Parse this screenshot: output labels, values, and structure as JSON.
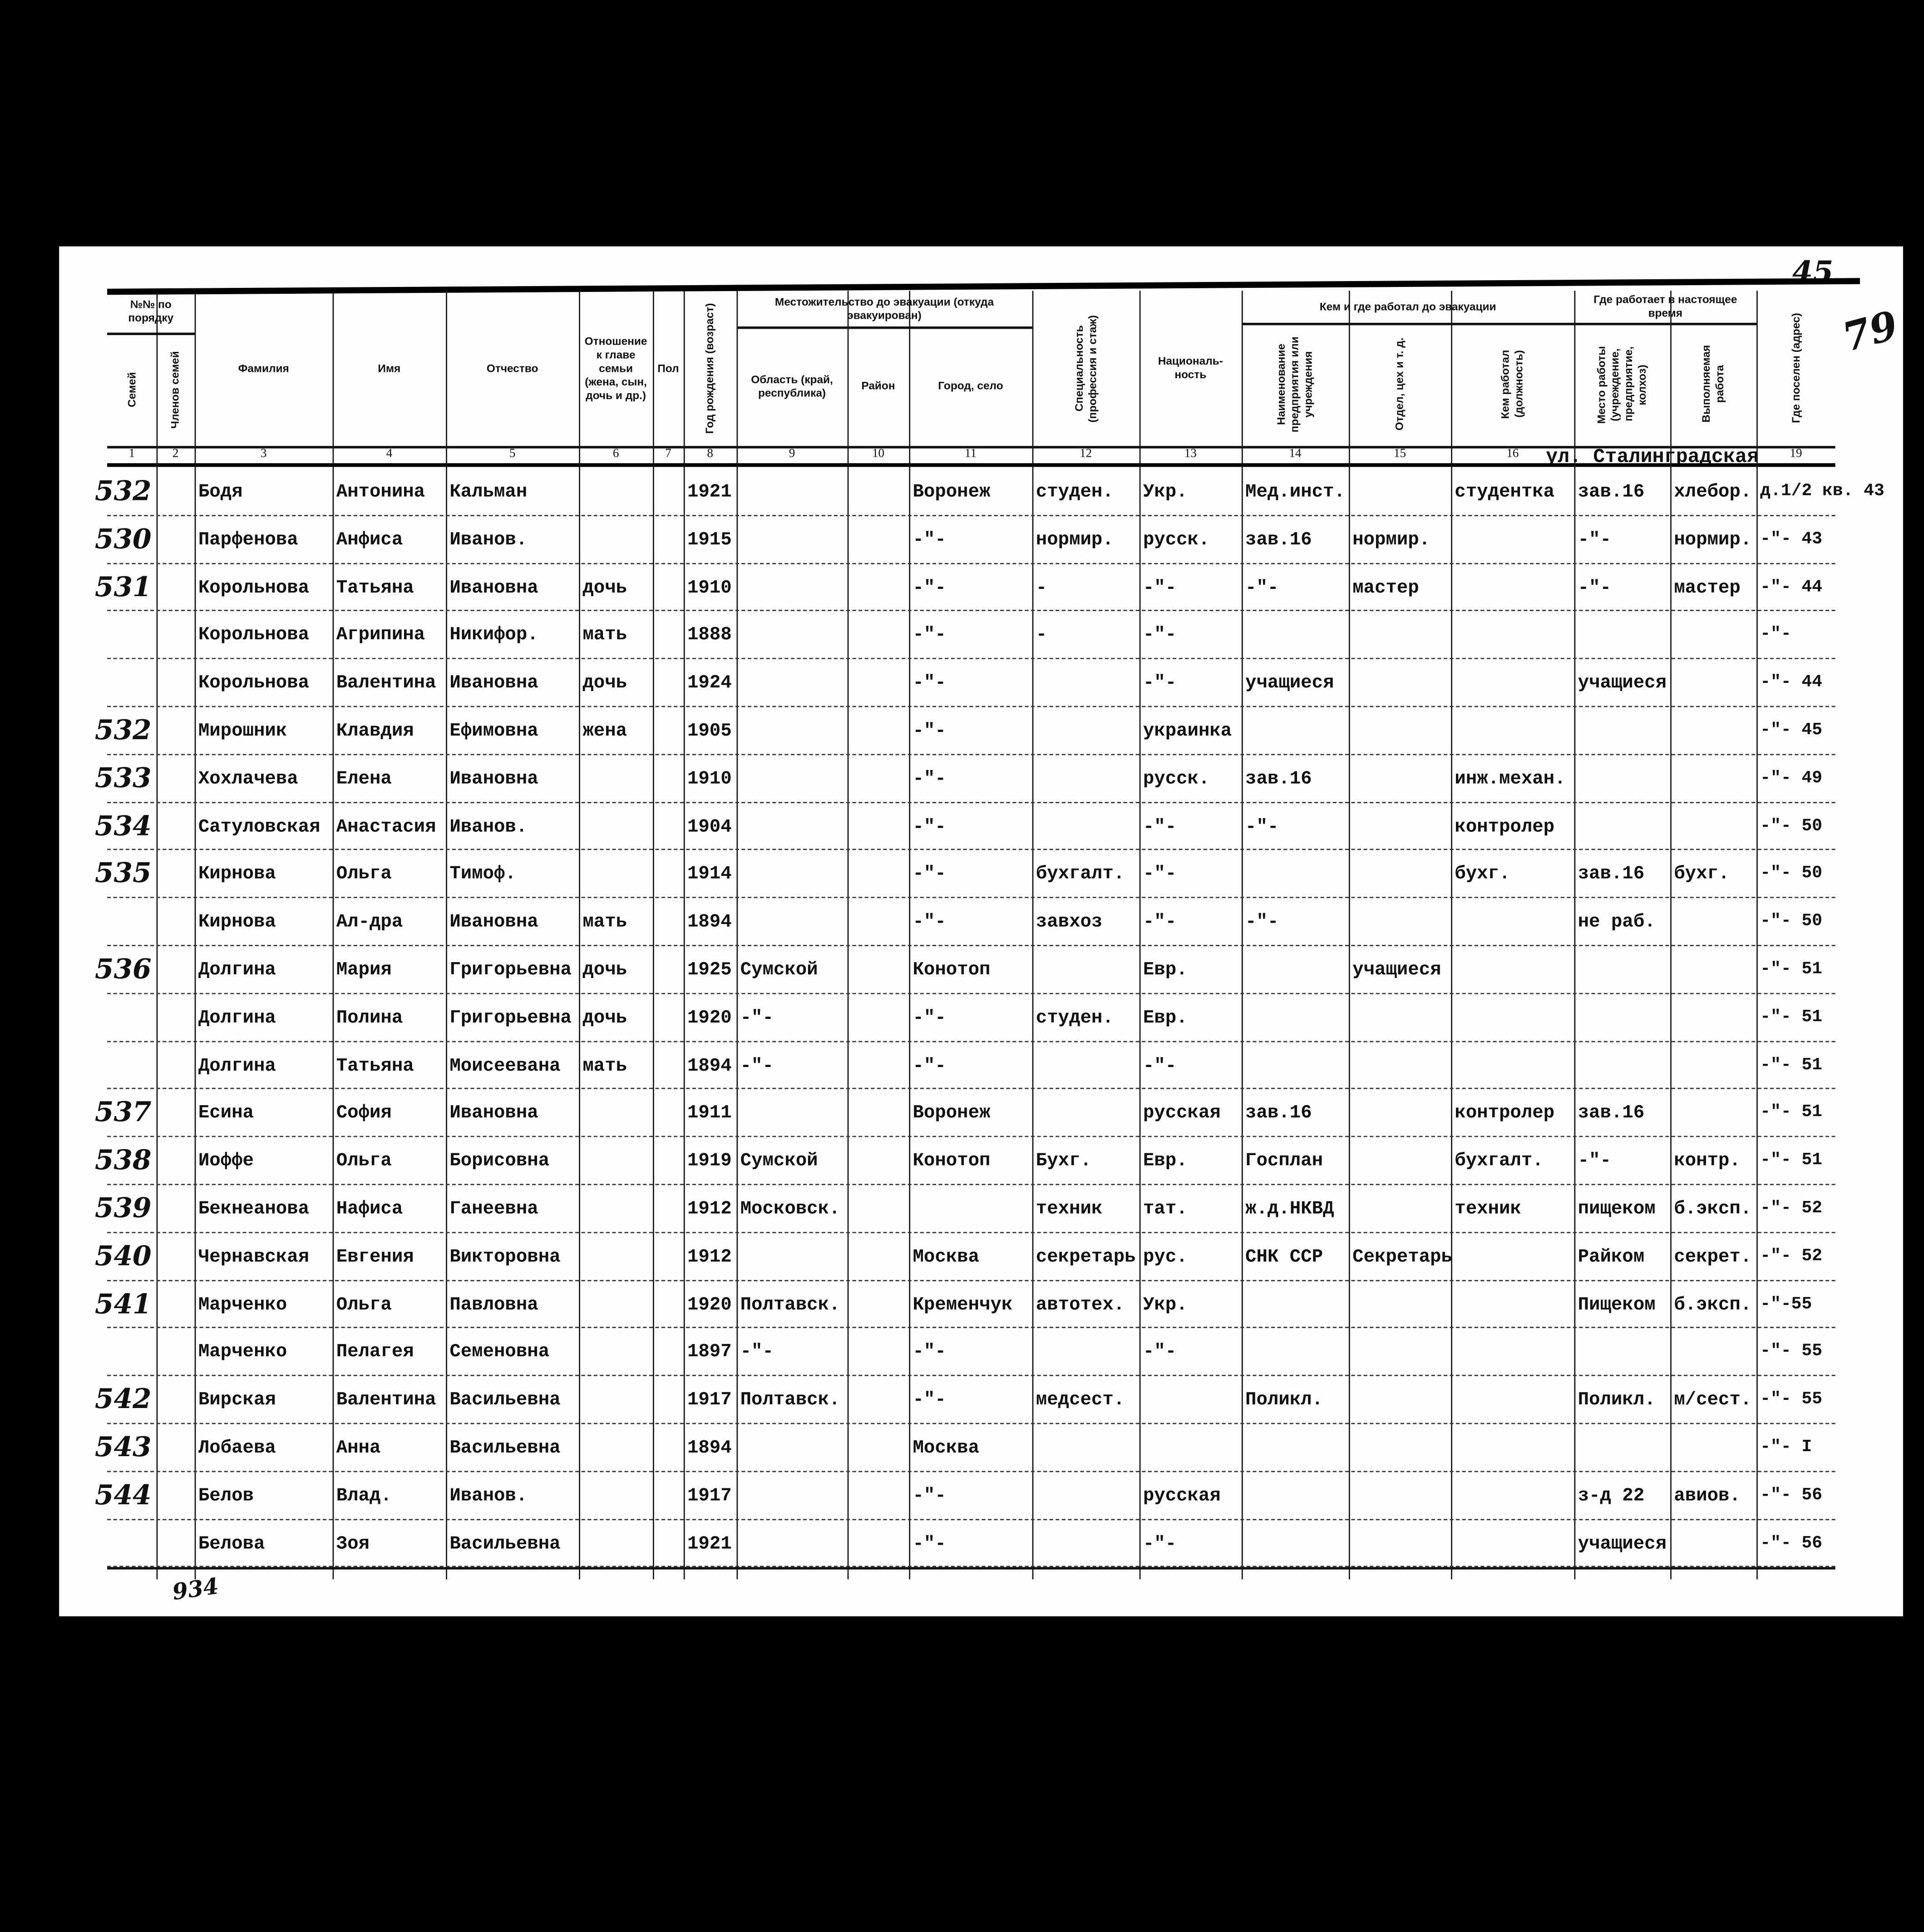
{
  "page_marks": {
    "page_number": "45",
    "folio_handwritten": "79",
    "bottom_count": "934"
  },
  "header": {
    "col1_group": "№№ по порядку",
    "col1": "Семей",
    "col2": "Членов семей",
    "col3": "Фамилия",
    "col4": "Имя",
    "col5": "Отчество",
    "col6": "Отношение к главе семьи (жена, сын, дочь и др.)",
    "col7": "Пол",
    "col8": "Год рождения (возраст)",
    "group_residence": "Местожительство до эвакуации (откуда эвакуирован)",
    "col9": "Область (край, республика)",
    "col10": "Район",
    "col11": "Город, село",
    "col12": "Специальность (профессия и стаж)",
    "col13": "Националь-ность",
    "group_work_before": "Кем и где работал до эвакуации",
    "col14": "Наименование предприятия или учреждения",
    "col15": "Отдел, цех и т. д.",
    "col16": "Кем работал (должность)",
    "group_work_now": "Где работает в настоящее время",
    "col17": "Место работы (учреждение, предприятие, колхоз)",
    "col18": "Выполняемая работа",
    "col19": "Где поселен (адрес)",
    "numbers": [
      "1",
      "2",
      "3",
      "4",
      "5",
      "6",
      "7",
      "8",
      "9",
      "10",
      "11",
      "12",
      "13",
      "14",
      "15",
      "16",
      "",
      "",
      "19"
    ]
  },
  "street_note": "ул. Сталинградская",
  "rows": [
    [
      "532",
      "",
      "Бодя",
      "Антонина",
      "Кальман",
      "",
      "",
      "1921",
      "",
      "",
      "Воронеж",
      "студен.",
      "Укр.",
      "Мед.инст.",
      "",
      "студентка",
      "зав.16",
      "хлебор.",
      "д.1/2 кв. 43"
    ],
    [
      "530",
      "",
      "Парфенова",
      "Анфиса",
      "Иванов.",
      "",
      "",
      "1915",
      "",
      "",
      "-\"-",
      "нормир.",
      "русск.",
      "зав.16",
      "нормир.",
      "",
      "-\"-",
      "нормир.",
      "-\"- 43"
    ],
    [
      "531",
      "",
      "Корольнова",
      "Татьяна",
      "Ивановна",
      "дочь",
      "",
      "1910",
      "",
      "",
      "-\"-",
      "-",
      "-\"-",
      "-\"-",
      "мастер",
      "",
      "-\"-",
      "мастер",
      "-\"- 44"
    ],
    [
      "",
      "",
      "Корольнова",
      "Агрипина",
      "Никифор.",
      "мать",
      "",
      "1888",
      "",
      "",
      "-\"-",
      "-",
      "-\"-",
      "",
      "",
      "",
      "",
      "",
      "-\"-"
    ],
    [
      "",
      "",
      "Корольнова",
      "Валентина",
      "Ивановна",
      "дочь",
      "",
      "1924",
      "",
      "",
      "-\"-",
      "",
      "-\"-",
      "учащиеся",
      "",
      "",
      "учащиеся",
      "",
      "-\"- 44"
    ],
    [
      "532",
      "",
      "Мирошник",
      "Клавдия",
      "Ефимовна",
      "жена",
      "",
      "1905",
      "",
      "",
      "-\"-",
      "",
      "украинка",
      "",
      "",
      "",
      "",
      "",
      "-\"- 45"
    ],
    [
      "533",
      "",
      "Хохлачева",
      "Елена",
      "Ивановна",
      "",
      "",
      "1910",
      "",
      "",
      "-\"-",
      "",
      "русск.",
      "зав.16",
      "",
      "инж.механ.",
      "",
      "",
      "-\"- 49"
    ],
    [
      "534",
      "",
      "Сатуловская",
      "Анастасия",
      "Иванов.",
      "",
      "",
      "1904",
      "",
      "",
      "-\"-",
      "",
      "-\"-",
      "-\"-",
      "",
      "контролер",
      "",
      "",
      "-\"- 50"
    ],
    [
      "535",
      "",
      "Кирнова",
      "Ольга",
      "Тимоф.",
      "",
      "",
      "1914",
      "",
      "",
      "-\"-",
      "бухгалт.",
      "-\"-",
      "",
      "",
      "бухг.",
      "зав.16",
      "бухг.",
      "-\"- 50"
    ],
    [
      "",
      "",
      "Кирнова",
      "Ал-дра",
      "Ивановна",
      "мать",
      "",
      "1894",
      "",
      "",
      "-\"-",
      "завхоз",
      "-\"-",
      "-\"-",
      "",
      "",
      "не раб.",
      "",
      "-\"- 50"
    ],
    [
      "536",
      "",
      "Долгина",
      "Мария",
      "Григорьевна",
      "дочь",
      "",
      "1925",
      "Сумской",
      "",
      "Конотоп",
      "",
      "Евр.",
      "",
      "учащиеся",
      "",
      "",
      "",
      "-\"- 51"
    ],
    [
      "",
      "",
      "Долгина",
      "Полина",
      "Григорьевна",
      "дочь",
      "",
      "1920",
      "-\"-",
      "",
      "-\"-",
      "студен.",
      "Евр.",
      "",
      "",
      "",
      "",
      "",
      "-\"- 51"
    ],
    [
      "",
      "",
      "Долгина",
      "Татьяна",
      "Моисеевана",
      "мать",
      "",
      "1894",
      "-\"-",
      "",
      "-\"-",
      "",
      "-\"-",
      "",
      "",
      "",
      "",
      "",
      "-\"- 51"
    ],
    [
      "537",
      "",
      "Есина",
      "София",
      "Ивановна",
      "",
      "",
      "1911",
      "",
      "",
      "Воронеж",
      "",
      "русская",
      "зав.16",
      "",
      "контролер",
      "зав.16",
      "",
      "-\"- 51"
    ],
    [
      "538",
      "",
      "Иоффе",
      "Ольга",
      "Борисовна",
      "",
      "",
      "1919",
      "Сумской",
      "",
      "Конотоп",
      "Бухг.",
      "Евр.",
      "Госплан",
      "",
      "бухгалт.",
      "-\"-",
      "контр.",
      "-\"- 51"
    ],
    [
      "539",
      "",
      "Бекнеанова",
      "Нафиса",
      "Ганеевна",
      "",
      "",
      "1912",
      "Московск.",
      "",
      "",
      "техник",
      "тат.",
      "ж.д.НКВД",
      "",
      "техник",
      "пищеком",
      "б.эксп.",
      "-\"- 52"
    ],
    [
      "540",
      "",
      "Чернавская",
      "Евгения",
      "Викторовна",
      "",
      "",
      "1912",
      "",
      "",
      "Москва",
      "секретарь",
      "рус.",
      "СНК ССР",
      "Секретарь",
      "",
      "Райком",
      "секрет.",
      "-\"- 52"
    ],
    [
      "541",
      "",
      "Марченко",
      "Ольга",
      "Павловна",
      "",
      "",
      "1920",
      "Полтавск.",
      "",
      "Кременчук",
      "автотех.",
      "Укр.",
      "",
      "",
      "",
      "Пищеком",
      "б.эксп.",
      "-\"-55"
    ],
    [
      "",
      "",
      "Марченко",
      "Пелагея",
      "Семеновна",
      "",
      "",
      "1897",
      "-\"-",
      "",
      "-\"-",
      "",
      "-\"-",
      "",
      "",
      "",
      "",
      "",
      "-\"- 55"
    ],
    [
      "542",
      "",
      "Вирская",
      "Валентина",
      "Васильевна",
      "",
      "",
      "1917",
      "Полтавск.",
      "",
      "-\"-",
      "медсест.",
      "",
      "Поликл.",
      "",
      "",
      "Поликл.",
      "м/сест.",
      "-\"- 55"
    ],
    [
      "543",
      "",
      "Лобаева",
      "Анна",
      "Васильевна",
      "",
      "",
      "1894",
      "",
      "",
      "Москва",
      "",
      "",
      "",
      "",
      "",
      "",
      "",
      "-\"- I"
    ],
    [
      "544",
      "",
      "Белов",
      "Влад.",
      "Иванов.",
      "",
      "",
      "1917",
      "",
      "",
      "-\"-",
      "",
      "русская",
      "",
      "",
      "",
      "з-д 22",
      "авиов.",
      "-\"- 56"
    ],
    [
      "",
      "",
      "Белова",
      "Зоя",
      "Васильевна",
      "",
      "",
      "1921",
      "",
      "",
      "-\"-",
      "",
      "-\"-",
      "",
      "",
      "",
      "учащиеся",
      "",
      "-\"- 56"
    ]
  ]
}
